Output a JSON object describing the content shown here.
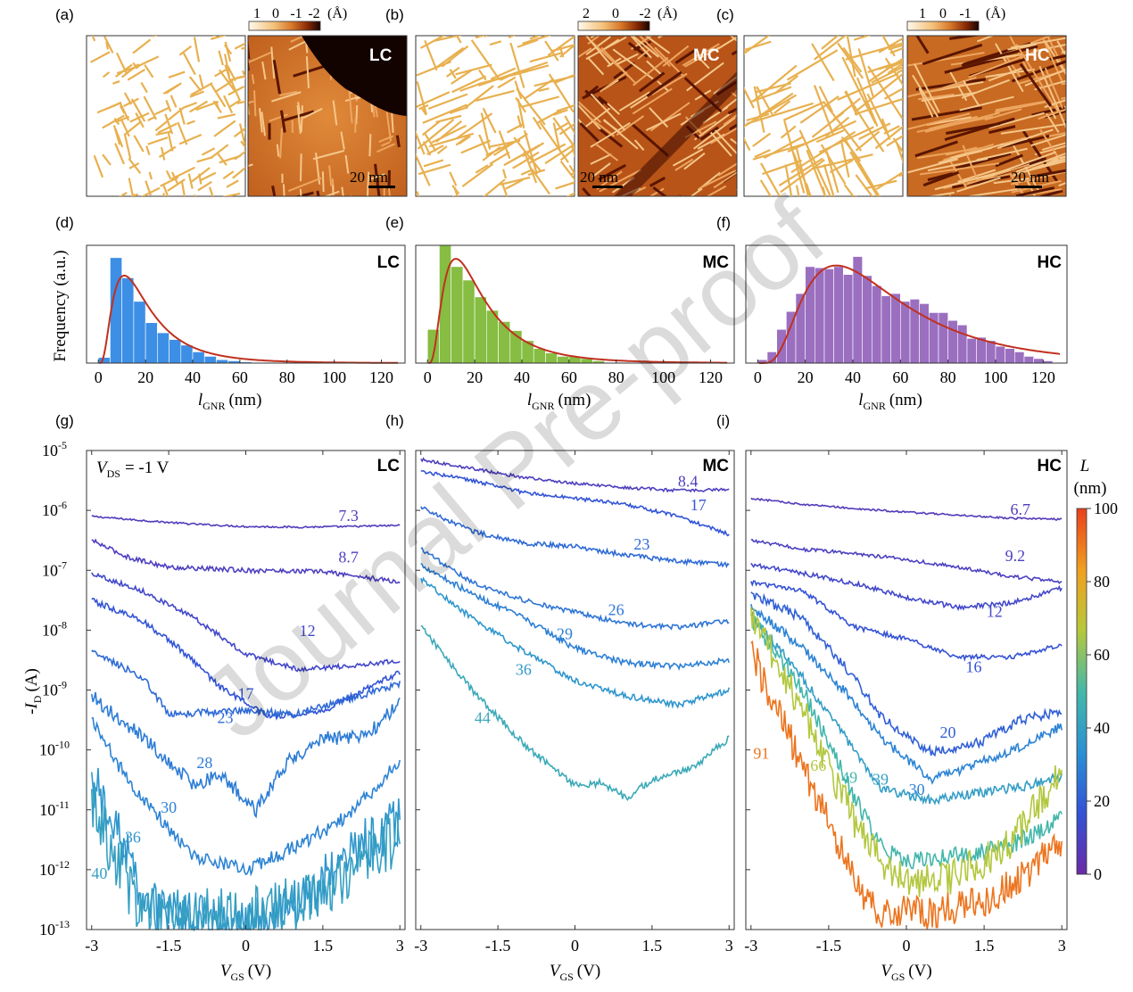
{
  "figure": {
    "panel_letters": [
      "(a)",
      "(b)",
      "(c)",
      "(d)",
      "(e)",
      "(f)",
      "(g)",
      "(h)",
      "(i)"
    ],
    "watermark": "Journal Pre-proof"
  },
  "images": [
    {
      "panel": "(a)",
      "tag": "LC",
      "scale_bar": "20 nm",
      "colorbar_ticks": [
        "1",
        "0",
        "-1",
        "-2"
      ],
      "colorbar_unit": "(Å)",
      "colors": {
        "low": "#1a0300",
        "mid": "#d8782a",
        "high": "#fff8ec"
      }
    },
    {
      "panel": "(b)",
      "tag": "MC",
      "scale_bar": "20 nm",
      "colorbar_ticks": [
        "2",
        "0",
        "-2"
      ],
      "colorbar_unit": "(Å)",
      "colors": {
        "low": "#1a0300",
        "mid": "#d8782a",
        "high": "#fff8ec"
      }
    },
    {
      "panel": "(c)",
      "tag": "HC",
      "scale_bar": "20 nm",
      "colorbar_ticks": [
        "1",
        "0",
        "-1"
      ],
      "colorbar_unit": "(Å)",
      "colors": {
        "low": "#1a0300",
        "mid": "#d8782a",
        "high": "#fff8ec"
      }
    }
  ],
  "chart_data": [
    {
      "panel": "(d)",
      "type": "bar",
      "tag": "LC",
      "color": "#3d8fe6",
      "ylabel": "Frequency (a.u.)",
      "xlabel_main": "l",
      "xlabel_sub": "GNR",
      "xlabel_unit": "(nm)",
      "xlim": [
        -5,
        130
      ],
      "ylim": [
        0,
        1.05
      ],
      "xticks": [
        0,
        20,
        40,
        60,
        80,
        100,
        120
      ],
      "bin_width": 5,
      "bin_starts": [
        0,
        5,
        10,
        15,
        20,
        25,
        30,
        35,
        40,
        45,
        50,
        55,
        60
      ],
      "values": [
        0.05,
        0.94,
        0.76,
        0.55,
        0.36,
        0.27,
        0.21,
        0.16,
        0.1,
        0.06,
        0.03,
        0.02,
        0.01
      ],
      "fit": {
        "type": "lognormal",
        "mode": 11,
        "peak": 0.78
      }
    },
    {
      "panel": "(e)",
      "type": "bar",
      "tag": "MC",
      "color": "#86bd42",
      "xlabel_main": "l",
      "xlabel_sub": "GNR",
      "xlabel_unit": "(nm)",
      "xlim": [
        -5,
        130
      ],
      "ylim": [
        0,
        1.05
      ],
      "xticks": [
        0,
        20,
        40,
        60,
        80,
        100,
        120
      ],
      "bin_width": 5,
      "bin_starts": [
        0,
        5,
        10,
        15,
        20,
        25,
        30,
        35,
        40,
        45,
        50,
        55,
        60,
        65,
        70
      ],
      "values": [
        0.3,
        1.05,
        0.86,
        0.74,
        0.59,
        0.47,
        0.37,
        0.29,
        0.2,
        0.13,
        0.09,
        0.06,
        0.06,
        0.04,
        0.02
      ],
      "fit": {
        "type": "lognormal",
        "mode": 12,
        "peak": 0.93
      }
    },
    {
      "panel": "(f)",
      "type": "bar",
      "tag": "HC",
      "color": "#9b6fc0",
      "xlabel_main": "l",
      "xlabel_sub": "GNR",
      "xlabel_unit": "(nm)",
      "xlim": [
        -5,
        130
      ],
      "ylim": [
        0,
        1.05
      ],
      "xticks": [
        0,
        20,
        40,
        60,
        80,
        100,
        120
      ],
      "bin_width": 4,
      "bin_starts": [
        0,
        4,
        8,
        12,
        16,
        20,
        24,
        28,
        32,
        36,
        40,
        44,
        48,
        52,
        56,
        60,
        64,
        68,
        72,
        76,
        80,
        84,
        88,
        92,
        96,
        100,
        104,
        108,
        112,
        116,
        120
      ],
      "values": [
        0.03,
        0.1,
        0.3,
        0.46,
        0.62,
        0.86,
        0.85,
        0.84,
        0.86,
        0.79,
        0.95,
        0.78,
        0.69,
        0.6,
        0.62,
        0.55,
        0.57,
        0.53,
        0.45,
        0.45,
        0.38,
        0.34,
        0.22,
        0.23,
        0.2,
        0.15,
        0.13,
        0.1,
        0.06,
        0.04,
        0.02
      ],
      "fit": {
        "type": "lognormal",
        "mode": 33,
        "peak": 0.87
      }
    },
    {
      "panel": "(g)",
      "type": "line",
      "tag": "LC",
      "yscale": "log",
      "ylabel_main": "-I",
      "ylabel_sub": "D",
      "ylabel_unit": "(A)",
      "xlabel_main": "V",
      "xlabel_sub": "GS",
      "xlabel_unit": "(V)",
      "xlim": [
        -3.1,
        3.1
      ],
      "xticks": [
        "-3",
        "-1.5",
        "0",
        "1.5",
        "3"
      ],
      "xtick_values": [
        -3,
        -1.5,
        0,
        1.5,
        3
      ],
      "ylim_exp": [
        -13,
        -5
      ],
      "yticks": [
        {
          "base": "10",
          "exp": "-5"
        },
        {
          "base": "10",
          "exp": "-6"
        },
        {
          "base": "10",
          "exp": "-7"
        },
        {
          "base": "10",
          "exp": "-8"
        },
        {
          "base": "10",
          "exp": "-9"
        },
        {
          "base": "10",
          "exp": "-10"
        },
        {
          "base": "10",
          "exp": "-11"
        },
        {
          "base": "10",
          "exp": "-12"
        },
        {
          "base": "10",
          "exp": "-13"
        }
      ],
      "vds_main": "V",
      "vds_sub": "DS",
      "vds_value": "= -1 V",
      "series": [
        {
          "name": "7.3",
          "L": 7.3,
          "x": [
            -3,
            -2,
            -1,
            0,
            1,
            2,
            3
          ],
          "log_y": [
            -6.1,
            -6.17,
            -6.23,
            -6.27,
            -6.28,
            -6.27,
            -6.25
          ],
          "noise": 0.015,
          "label_at": [
            2.0,
            -6.18
          ]
        },
        {
          "name": "8.7",
          "L": 8.7,
          "x": [
            -3,
            -2.3,
            -1.5,
            0,
            1.5,
            3
          ],
          "log_y": [
            -6.5,
            -6.78,
            -6.95,
            -7.0,
            -7.02,
            -7.2
          ],
          "noise": 0.04,
          "label_at": [
            2.0,
            -6.87
          ]
        },
        {
          "name": "12",
          "L": 12,
          "x": [
            -3,
            -2,
            -1,
            0,
            1,
            2,
            3
          ],
          "log_y": [
            -7.05,
            -7.35,
            -7.8,
            -8.4,
            -8.65,
            -8.6,
            -8.5
          ],
          "noise": 0.04,
          "label_at": [
            1.2,
            -8.1
          ]
        },
        {
          "name": "17",
          "L": 17,
          "x": [
            -3,
            -2,
            -1.3,
            -0.5,
            0.5,
            1.5,
            3
          ],
          "log_y": [
            -7.5,
            -7.85,
            -8.3,
            -8.95,
            -9.45,
            -9.35,
            -8.7
          ],
          "noise": 0.05,
          "label_at": [
            0.0,
            -9.15
          ]
        },
        {
          "name": "23",
          "L": 23,
          "x": [
            -3,
            -2,
            -1.5,
            0,
            1,
            2,
            3
          ],
          "log_y": [
            -8.35,
            -8.8,
            -9.4,
            -9.35,
            -9.4,
            -9.15,
            -8.9
          ],
          "noise": 0.06,
          "label_at": [
            -0.4,
            -9.55
          ]
        },
        {
          "name": "28",
          "L": 28,
          "x": [
            -3,
            -2,
            -1,
            -0.5,
            0.2,
            0.8,
            1.5,
            2.3,
            3
          ],
          "log_y": [
            -9.1,
            -9.8,
            -10.6,
            -10.4,
            -11.0,
            -10.2,
            -9.8,
            -9.8,
            -9.2
          ],
          "noise": 0.12,
          "label_at": [
            -0.8,
            -10.3
          ]
        },
        {
          "name": "30",
          "L": 30,
          "x": [
            -3,
            -2.3,
            -1.5,
            -1,
            0,
            1,
            2,
            3
          ],
          "log_y": [
            -9.5,
            -10.5,
            -11.3,
            -11.8,
            -12.0,
            -11.6,
            -11.1,
            -10.2
          ],
          "noise": 0.12,
          "label_at": [
            -1.5,
            -11.05
          ]
        },
        {
          "name": "36",
          "L": 36,
          "x": [
            -3,
            -2.5,
            -2,
            -1.5,
            0,
            1,
            2,
            3
          ],
          "log_y": [
            -10.5,
            -11.4,
            -12.5,
            -12.8,
            -12.9,
            -12.5,
            -11.8,
            -11.15
          ],
          "noise": 0.45,
          "label_at": [
            -2.2,
            -11.55
          ]
        },
        {
          "name": "40",
          "L": 40,
          "x": [
            -3,
            -2.5,
            -2,
            -1.5,
            0,
            1,
            2,
            3
          ],
          "log_y": [
            -10.8,
            -11.9,
            -12.7,
            -12.8,
            -12.8,
            -12.6,
            -12.0,
            -11.4
          ],
          "noise": 0.5,
          "label_at": [
            -2.85,
            -12.15
          ]
        }
      ]
    },
    {
      "panel": "(h)",
      "type": "line",
      "tag": "MC",
      "yscale": "log",
      "xlabel_main": "V",
      "xlabel_sub": "GS",
      "xlabel_unit": "(V)",
      "xlim": [
        -3.1,
        3.1
      ],
      "xticks": [
        "-3",
        "-1.5",
        "0",
        "1.5",
        "3"
      ],
      "xtick_values": [
        -3,
        -1.5,
        0,
        1.5,
        3
      ],
      "ylim_exp": [
        -13,
        -5
      ],
      "series": [
        {
          "name": "8.4",
          "L": 8.4,
          "x": [
            -3,
            -2,
            -1,
            0,
            1,
            2,
            3
          ],
          "log_y": [
            -5.15,
            -5.3,
            -5.45,
            -5.55,
            -5.62,
            -5.67,
            -5.65
          ],
          "noise": 0.025,
          "label_at": [
            2.2,
            -5.6
          ]
        },
        {
          "name": "17",
          "L": 17,
          "x": [
            -3,
            -2,
            -1,
            0,
            1,
            2,
            3
          ],
          "log_y": [
            -5.35,
            -5.5,
            -5.7,
            -5.8,
            -5.9,
            -6.1,
            -6.4
          ],
          "noise": 0.03,
          "label_at": [
            2.4,
            -6.0
          ]
        },
        {
          "name": "23",
          "L": 23,
          "x": [
            -3,
            -2,
            -1,
            0,
            1,
            2,
            3
          ],
          "log_y": [
            -5.95,
            -6.35,
            -6.55,
            -6.6,
            -6.75,
            -6.85,
            -6.9
          ],
          "noise": 0.04,
          "label_at": [
            1.3,
            -6.65
          ]
        },
        {
          "name": "26",
          "L": 26,
          "x": [
            -3,
            -2,
            -1,
            0,
            1,
            2,
            3
          ],
          "log_y": [
            -6.65,
            -7.2,
            -7.5,
            -7.7,
            -7.9,
            -7.95,
            -7.85
          ],
          "noise": 0.04,
          "label_at": [
            0.8,
            -7.75
          ]
        },
        {
          "name": "29",
          "L": 29,
          "x": [
            -3,
            -2,
            -1,
            0,
            1,
            2,
            3
          ],
          "log_y": [
            -6.9,
            -7.4,
            -7.8,
            -8.3,
            -8.55,
            -8.6,
            -8.5
          ],
          "noise": 0.05,
          "label_at": [
            -0.2,
            -8.15
          ]
        },
        {
          "name": "36",
          "L": 36,
          "x": [
            -3,
            -2,
            -1,
            0,
            1,
            2,
            3
          ],
          "log_y": [
            -7.15,
            -7.8,
            -8.35,
            -8.85,
            -9.1,
            -9.25,
            -9.0
          ],
          "noise": 0.05,
          "label_at": [
            -1.0,
            -8.75
          ]
        },
        {
          "name": "44",
          "L": 44,
          "x": [
            -3,
            -2,
            -1,
            0,
            0.5,
            1,
            1.5,
            2.3,
            3
          ],
          "log_y": [
            -7.95,
            -9.0,
            -9.9,
            -10.6,
            -10.55,
            -10.8,
            -10.5,
            -10.3,
            -9.8
          ],
          "noise": 0.06,
          "label_at": [
            -1.8,
            -9.55
          ]
        }
      ]
    },
    {
      "panel": "(i)",
      "type": "line",
      "tag": "HC",
      "yscale": "log",
      "xlabel_main": "V",
      "xlabel_sub": "GS",
      "xlabel_unit": "(V)",
      "xlim": [
        -3.1,
        3.1
      ],
      "xticks": [
        "-3",
        "-1.5",
        "0",
        "1.5",
        "3"
      ],
      "xtick_values": [
        -3,
        -1.5,
        0,
        1.5,
        3
      ],
      "ylim_exp": [
        -13,
        -5
      ],
      "colorbar": {
        "title": "L",
        "unit": "(nm)",
        "ticks": [
          "100",
          "80",
          "60",
          "40",
          "20",
          "0"
        ],
        "tick_values": [
          100,
          80,
          60,
          40,
          20,
          0
        ],
        "stops": [
          "#6a2aa8",
          "#3253d6",
          "#2a8fd4",
          "#45b8a8",
          "#b8c83a",
          "#f0a020",
          "#e8401c"
        ]
      },
      "series": [
        {
          "name": "6.7",
          "L": 6.7,
          "x": [
            -3,
            -2,
            -1,
            0,
            1,
            2,
            3
          ],
          "log_y": [
            -5.8,
            -5.9,
            -5.97,
            -6.03,
            -6.08,
            -6.13,
            -6.15
          ],
          "noise": 0.015,
          "label_at": [
            2.2,
            -6.07
          ]
        },
        {
          "name": "9.2",
          "L": 9.2,
          "x": [
            -3,
            -2,
            -1,
            0,
            1,
            2,
            3
          ],
          "log_y": [
            -6.5,
            -6.65,
            -6.72,
            -6.82,
            -6.95,
            -7.1,
            -7.2
          ],
          "noise": 0.03,
          "label_at": [
            2.1,
            -6.85
          ]
        },
        {
          "name": "12",
          "L": 12,
          "x": [
            -3,
            -2,
            -1,
            0,
            1,
            2,
            3
          ],
          "log_y": [
            -6.9,
            -7.05,
            -7.22,
            -7.45,
            -7.62,
            -7.55,
            -7.3
          ],
          "noise": 0.04,
          "label_at": [
            1.7,
            -7.78
          ]
        },
        {
          "name": "16",
          "L": 16,
          "x": [
            -3,
            -2,
            -1,
            0,
            1,
            2,
            3
          ],
          "log_y": [
            -7.2,
            -7.35,
            -7.95,
            -8.15,
            -8.45,
            -8.45,
            -8.25
          ],
          "noise": 0.04,
          "label_at": [
            1.3,
            -8.7
          ]
        },
        {
          "name": "20",
          "L": 20,
          "x": [
            -3,
            -2,
            -1,
            -0.5,
            0.5,
            1.5,
            2.2,
            3
          ],
          "log_y": [
            -7.4,
            -7.8,
            -8.8,
            -9.45,
            -10.05,
            -9.85,
            -9.5,
            -9.35
          ],
          "noise": 0.08,
          "label_at": [
            0.8,
            -9.8
          ]
        },
        {
          "name": "30",
          "L": 30,
          "x": [
            -3,
            -2,
            -1,
            -0.5,
            0.5,
            1.3,
            2.2,
            3
          ],
          "log_y": [
            -7.6,
            -8.3,
            -9.2,
            -9.8,
            -10.5,
            -10.25,
            -9.95,
            -9.6
          ],
          "noise": 0.08,
          "label_at": [
            0.2,
            -10.75
          ]
        },
        {
          "name": "39",
          "L": 39,
          "x": [
            -3,
            -2,
            -1,
            -0.5,
            0.5,
            1.5,
            2.3,
            3
          ],
          "log_y": [
            -7.75,
            -8.8,
            -10.0,
            -10.65,
            -10.85,
            -10.7,
            -10.6,
            -10.45
          ],
          "noise": 0.08,
          "label_at": [
            -0.5,
            -10.58
          ]
        },
        {
          "name": "49",
          "L": 49,
          "x": [
            -3,
            -2,
            -1,
            -0.5,
            0,
            1,
            2,
            3
          ],
          "log_y": [
            -7.8,
            -9.0,
            -10.8,
            -11.6,
            -11.85,
            -11.75,
            -11.6,
            -11.15
          ],
          "noise": 0.15,
          "label_at": [
            -1.1,
            -10.55
          ]
        },
        {
          "name": "66",
          "L": 66,
          "x": [
            -3,
            -2,
            -1,
            -0.5,
            0,
            1,
            2,
            2.5,
            3
          ],
          "log_y": [
            -7.75,
            -9.3,
            -11.2,
            -11.85,
            -12.2,
            -12.1,
            -11.6,
            -10.9,
            -10.4
          ],
          "noise": 0.3,
          "label_at": [
            -1.7,
            -10.35
          ]
        },
        {
          "name": "91",
          "L": 91,
          "x": [
            -3,
            -2.3,
            -1.5,
            -1,
            -0.5,
            0.5,
            1.5,
            2.3,
            3
          ],
          "log_y": [
            -8.35,
            -9.7,
            -11.2,
            -12.2,
            -12.7,
            -12.7,
            -12.55,
            -12.1,
            -11.5
          ],
          "noise": 0.3,
          "label_at": [
            -2.8,
            -10.15
          ]
        }
      ]
    }
  ]
}
